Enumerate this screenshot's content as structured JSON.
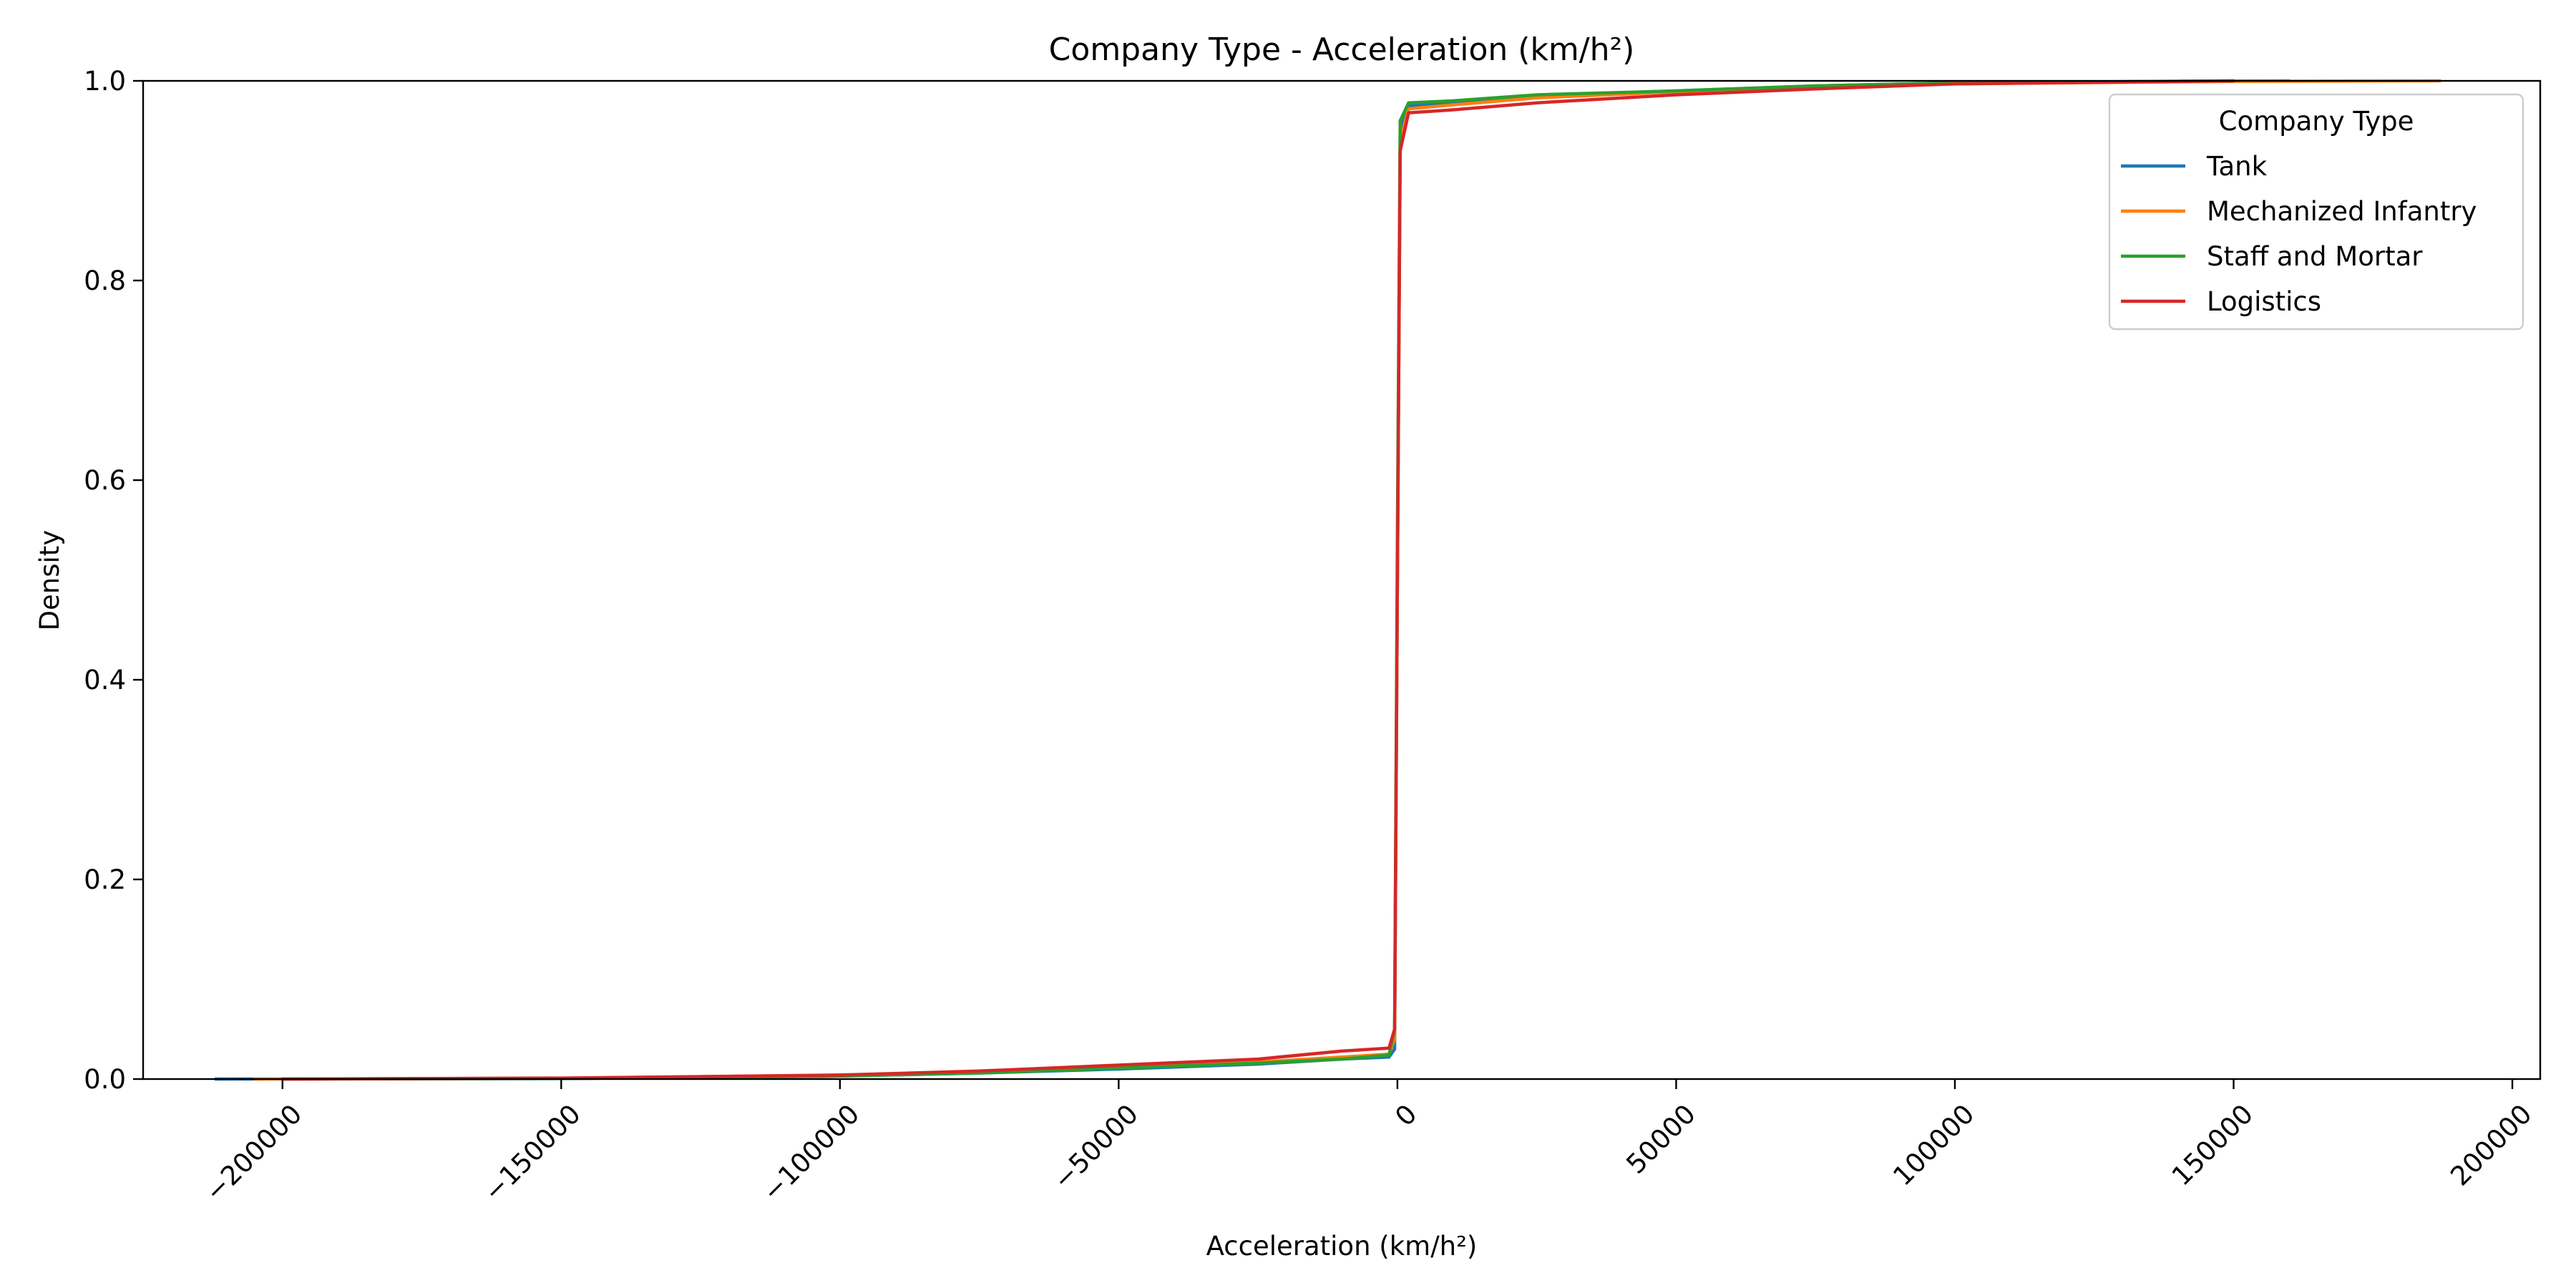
{
  "chart_data": {
    "type": "line",
    "title": "Company Type - Acceleration (km/h²)",
    "xlabel": "Acceleration (km/h²)",
    "ylabel": "Density",
    "xlim": [
      -225000,
      205000
    ],
    "ylim": [
      0,
      1.0
    ],
    "x_ticks": [
      -200000,
      -150000,
      -100000,
      -50000,
      0,
      50000,
      100000,
      150000,
      200000
    ],
    "x_tick_labels": [
      "−200000",
      "−150000",
      "−100000",
      "−50000",
      "0",
      "50000",
      "100000",
      "150000",
      "200000"
    ],
    "y_ticks": [
      0,
      0.2,
      0.4,
      0.6,
      0.8,
      1.0
    ],
    "y_tick_labels": [
      "0.0",
      "0.2",
      "0.4",
      "0.6",
      "0.8",
      "1.0"
    ],
    "grid": false,
    "legend": {
      "title": "Company Type",
      "placement": "top-right"
    },
    "series": [
      {
        "name": "Tank",
        "color": "#1f77b4",
        "points": [
          [
            -212000,
            0.0
          ],
          [
            -150000,
            0.0005
          ],
          [
            -100000,
            0.003
          ],
          [
            -75000,
            0.006
          ],
          [
            -50000,
            0.01
          ],
          [
            -25000,
            0.015
          ],
          [
            -10000,
            0.02
          ],
          [
            -1500,
            0.022
          ],
          [
            -500,
            0.03
          ],
          [
            0,
            0.5
          ],
          [
            500,
            0.95
          ],
          [
            2000,
            0.975
          ],
          [
            10000,
            0.978
          ],
          [
            25000,
            0.985
          ],
          [
            50000,
            0.99
          ],
          [
            75000,
            0.995
          ],
          [
            100000,
            0.998
          ],
          [
            140000,
            0.9995
          ],
          [
            160000,
            1.0
          ]
        ]
      },
      {
        "name": "Mechanized Infantry",
        "color": "#ff7f0e",
        "points": [
          [
            -205000,
            0.0
          ],
          [
            -150000,
            0.0008
          ],
          [
            -100000,
            0.004
          ],
          [
            -75000,
            0.007
          ],
          [
            -50000,
            0.012
          ],
          [
            -25000,
            0.017
          ],
          [
            -10000,
            0.022
          ],
          [
            -1500,
            0.025
          ],
          [
            -500,
            0.04
          ],
          [
            0,
            0.5
          ],
          [
            500,
            0.94
          ],
          [
            2000,
            0.972
          ],
          [
            10000,
            0.976
          ],
          [
            25000,
            0.983
          ],
          [
            50000,
            0.989
          ],
          [
            75000,
            0.994
          ],
          [
            100000,
            0.997
          ],
          [
            150000,
            0.9995
          ],
          [
            187000,
            1.0
          ]
        ]
      },
      {
        "name": "Staff and Mortar",
        "color": "#2ca02c",
        "points": [
          [
            -200000,
            0.0
          ],
          [
            -150000,
            0.0006
          ],
          [
            -100000,
            0.003
          ],
          [
            -75000,
            0.006
          ],
          [
            -50000,
            0.011
          ],
          [
            -25000,
            0.016
          ],
          [
            -10000,
            0.02
          ],
          [
            -1500,
            0.024
          ],
          [
            -500,
            0.05
          ],
          [
            0,
            0.55
          ],
          [
            500,
            0.96
          ],
          [
            2000,
            0.978
          ],
          [
            10000,
            0.98
          ],
          [
            25000,
            0.986
          ],
          [
            50000,
            0.99
          ],
          [
            75000,
            0.995
          ],
          [
            100000,
            0.998
          ],
          [
            150000,
            1.0
          ]
        ]
      },
      {
        "name": "Logistics",
        "color": "#d62728",
        "points": [
          [
            -200000,
            0.0
          ],
          [
            -150000,
            0.001
          ],
          [
            -100000,
            0.004
          ],
          [
            -75000,
            0.008
          ],
          [
            -50000,
            0.014
          ],
          [
            -25000,
            0.02
          ],
          [
            -10000,
            0.028
          ],
          [
            -1500,
            0.031
          ],
          [
            -500,
            0.05
          ],
          [
            0,
            0.5
          ],
          [
            500,
            0.93
          ],
          [
            2000,
            0.968
          ],
          [
            10000,
            0.971
          ],
          [
            25000,
            0.978
          ],
          [
            50000,
            0.986
          ],
          [
            75000,
            0.992
          ],
          [
            100000,
            0.997
          ],
          [
            150000,
            1.0
          ]
        ]
      }
    ]
  }
}
